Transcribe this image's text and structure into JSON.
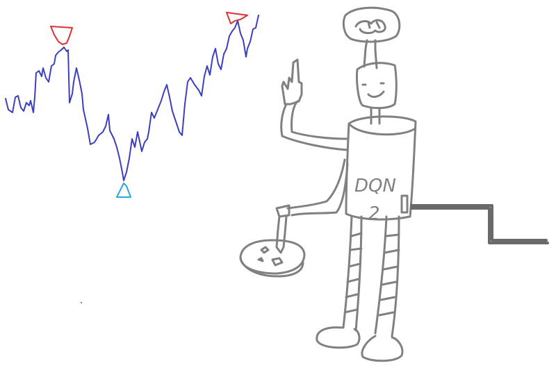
{
  "drawing": {
    "label_line1": "DQN",
    "label_line2": "2",
    "colors": {
      "line": "#3a3fc0",
      "peak_marker": "#e03030",
      "trough_marker": "#2aa6d8",
      "robot": "#808080",
      "tail": "#6a6a6a"
    },
    "icons": [
      "peak-marker-icon",
      "trough-marker-icon",
      "brain-icon",
      "pizza-icon"
    ]
  }
}
